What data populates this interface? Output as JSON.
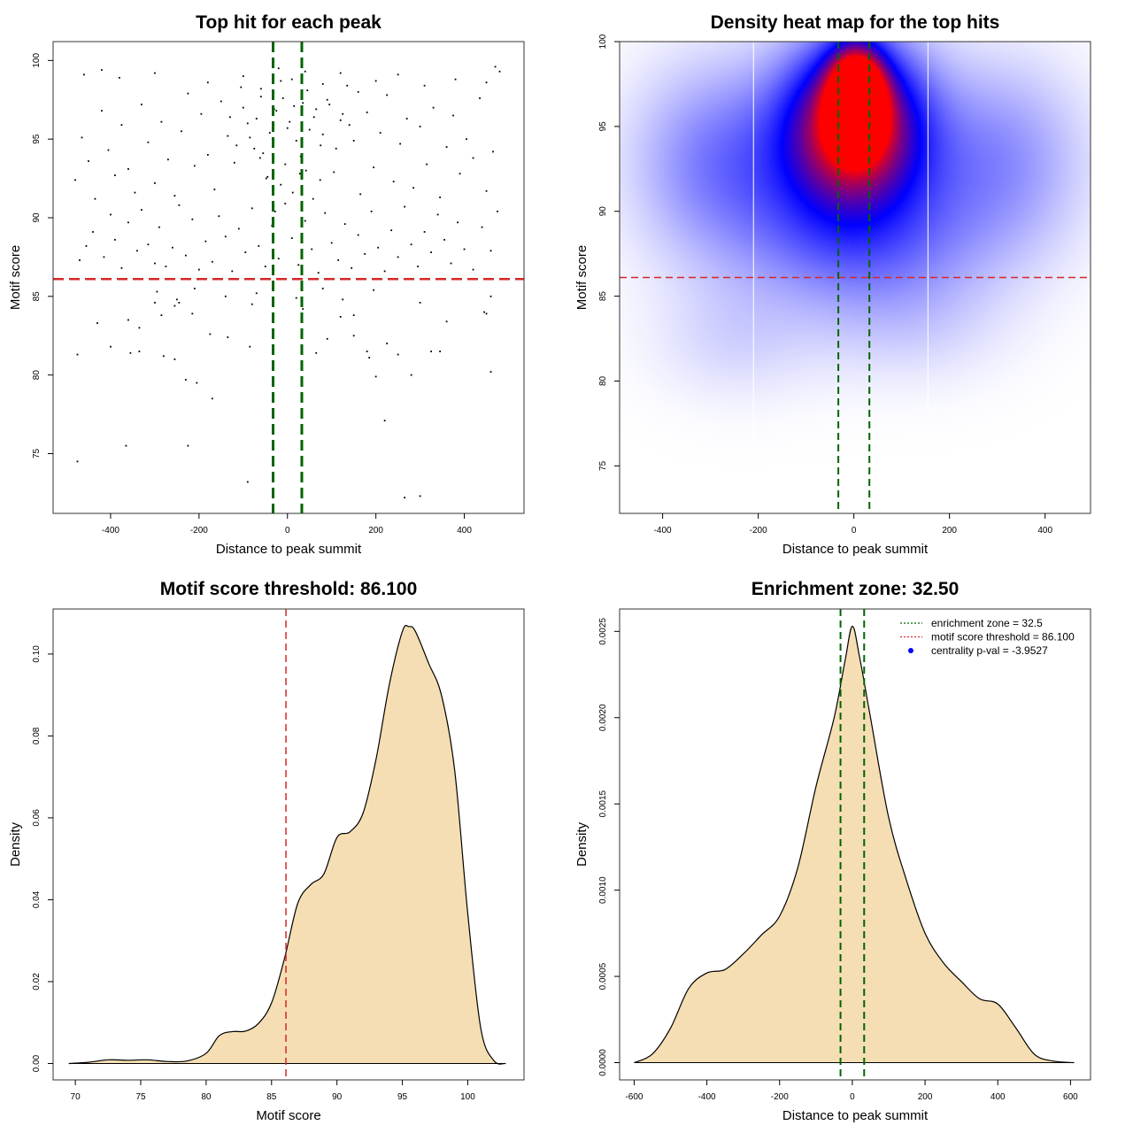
{
  "chart_data": [
    {
      "id": "scatter",
      "type": "scatter",
      "title": "Top hit for each peak",
      "xlabel": "Distance to peak summit",
      "ylabel": "Motif score",
      "xlim": [
        -530,
        535
      ],
      "ylim": [
        71.2,
        101.2
      ],
      "xticks": [
        -400,
        -200,
        0,
        200,
        400
      ],
      "yticks": [
        75,
        80,
        85,
        90,
        95,
        100
      ],
      "xtick_labels": [
        "-400",
        "-200",
        "0",
        "200",
        "400"
      ],
      "ytick_labels": [
        "75",
        "80",
        "85",
        "90",
        "95",
        "100"
      ],
      "hline": {
        "y": 86.1,
        "color": "#d62728"
      },
      "vlines": [
        {
          "x": -32.5,
          "color": "#006400"
        },
        {
          "x": 32.5,
          "color": "#006400"
        }
      ],
      "grid": false,
      "points": [
        [
          -475,
          74.5
        ],
        [
          -365,
          75.5
        ],
        [
          -225,
          75.5
        ],
        [
          -90,
          73.2
        ],
        [
          220,
          77.1
        ],
        [
          265,
          72.2
        ],
        [
          300,
          72.3
        ],
        [
          -170,
          78.5
        ],
        [
          -230,
          79.7
        ],
        [
          -205,
          79.5
        ],
        [
          200,
          79.9
        ],
        [
          280,
          80.0
        ],
        [
          460,
          80.2
        ],
        [
          -475,
          81.3
        ],
        [
          -400,
          81.8
        ],
        [
          -355,
          81.4
        ],
        [
          -335,
          81.5
        ],
        [
          -280,
          81.2
        ],
        [
          -255,
          81.0
        ],
        [
          -175,
          82.6
        ],
        [
          -135,
          82.4
        ],
        [
          -85,
          81.8
        ],
        [
          65,
          81.4
        ],
        [
          90,
          82.3
        ],
        [
          150,
          82.5
        ],
        [
          180,
          81.5
        ],
        [
          185,
          81.1
        ],
        [
          225,
          82.0
        ],
        [
          250,
          81.3
        ],
        [
          325,
          81.5
        ],
        [
          345,
          81.5
        ],
        [
          -430,
          83.3
        ],
        [
          -360,
          83.5
        ],
        [
          -335,
          83.0
        ],
        [
          -285,
          83.8
        ],
        [
          -255,
          84.4
        ],
        [
          -245,
          84.6
        ],
        [
          -215,
          83.9
        ],
        [
          -80,
          84.5
        ],
        [
          20,
          84.9
        ],
        [
          35,
          84.2
        ],
        [
          150,
          83.8
        ],
        [
          120,
          83.7
        ],
        [
          -300,
          84.6
        ],
        [
          -295,
          85.3
        ],
        [
          -250,
          84.8
        ],
        [
          -210,
          85.5
        ],
        [
          -140,
          85.0
        ],
        [
          -70,
          85.2
        ],
        [
          80,
          85.5
        ],
        [
          125,
          84.8
        ],
        [
          195,
          85.4
        ],
        [
          300,
          84.6
        ],
        [
          360,
          83.4
        ],
        [
          445,
          84.0
        ],
        [
          450,
          83.9
        ],
        [
          460,
          85.0
        ],
        [
          -470,
          87.3
        ],
        [
          -455,
          88.2
        ],
        [
          -440,
          89.1
        ],
        [
          -415,
          87.5
        ],
        [
          -400,
          90.2
        ],
        [
          -390,
          88.6
        ],
        [
          -375,
          86.8
        ],
        [
          -360,
          89.7
        ],
        [
          -340,
          87.9
        ],
        [
          -330,
          90.5
        ],
        [
          -315,
          88.3
        ],
        [
          -300,
          87.1
        ],
        [
          -290,
          89.4
        ],
        [
          -275,
          86.9
        ],
        [
          -260,
          88.1
        ],
        [
          -245,
          90.8
        ],
        [
          -230,
          87.6
        ],
        [
          -215,
          89.9
        ],
        [
          -200,
          86.7
        ],
        [
          -185,
          88.5
        ],
        [
          -170,
          87.2
        ],
        [
          -155,
          90.1
        ],
        [
          -140,
          88.8
        ],
        [
          -125,
          86.6
        ],
        [
          -110,
          89.3
        ],
        [
          -95,
          87.8
        ],
        [
          -80,
          90.6
        ],
        [
          -65,
          88.2
        ],
        [
          -50,
          86.9
        ],
        [
          -35,
          89.5
        ],
        [
          -20,
          87.4
        ],
        [
          -5,
          90.9
        ],
        [
          10,
          88.7
        ],
        [
          25,
          87.0
        ],
        [
          40,
          89.8
        ],
        [
          55,
          88.0
        ],
        [
          70,
          86.5
        ],
        [
          85,
          90.3
        ],
        [
          100,
          88.4
        ],
        [
          115,
          87.3
        ],
        [
          130,
          89.6
        ],
        [
          145,
          86.8
        ],
        [
          160,
          88.9
        ],
        [
          175,
          87.7
        ],
        [
          190,
          90.4
        ],
        [
          205,
          88.1
        ],
        [
          220,
          86.6
        ],
        [
          235,
          89.2
        ],
        [
          250,
          87.5
        ],
        [
          265,
          90.7
        ],
        [
          280,
          88.3
        ],
        [
          295,
          86.9
        ],
        [
          310,
          89.1
        ],
        [
          325,
          87.8
        ],
        [
          340,
          90.2
        ],
        [
          355,
          88.6
        ],
        [
          370,
          87.1
        ],
        [
          385,
          89.7
        ],
        [
          400,
          88.0
        ],
        [
          420,
          86.7
        ],
        [
          440,
          89.4
        ],
        [
          460,
          87.9
        ],
        [
          475,
          90.4
        ],
        [
          -480,
          92.4
        ],
        [
          -465,
          95.1
        ],
        [
          -450,
          93.6
        ],
        [
          -435,
          91.2
        ],
        [
          -420,
          96.8
        ],
        [
          -405,
          94.3
        ],
        [
          -390,
          92.7
        ],
        [
          -375,
          95.9
        ],
        [
          -360,
          93.1
        ],
        [
          -345,
          91.6
        ],
        [
          -330,
          97.2
        ],
        [
          -315,
          94.8
        ],
        [
          -300,
          92.2
        ],
        [
          -285,
          96.1
        ],
        [
          -270,
          93.7
        ],
        [
          -255,
          91.4
        ],
        [
          -240,
          95.5
        ],
        [
          -225,
          97.9
        ],
        [
          -210,
          93.3
        ],
        [
          -195,
          96.6
        ],
        [
          -180,
          94.0
        ],
        [
          -165,
          91.8
        ],
        [
          -150,
          97.4
        ],
        [
          -135,
          95.2
        ],
        [
          -120,
          93.5
        ],
        [
          -105,
          98.3
        ],
        [
          -90,
          96.0
        ],
        [
          -75,
          94.4
        ],
        [
          -60,
          97.7
        ],
        [
          -45,
          92.6
        ],
        [
          -30,
          96.9
        ],
        [
          -15,
          98.7
        ],
        [
          0,
          95.7
        ],
        [
          15,
          97.1
        ],
        [
          30,
          93.9
        ],
        [
          45,
          98.1
        ],
        [
          60,
          96.4
        ],
        [
          75,
          94.6
        ],
        [
          90,
          97.5
        ],
        [
          105,
          92.9
        ],
        [
          120,
          96.2
        ],
        [
          135,
          98.4
        ],
        [
          150,
          94.9
        ],
        [
          165,
          91.5
        ],
        [
          180,
          96.7
        ],
        [
          195,
          93.2
        ],
        [
          210,
          95.4
        ],
        [
          225,
          97.8
        ],
        [
          240,
          92.3
        ],
        [
          255,
          94.7
        ],
        [
          270,
          96.3
        ],
        [
          285,
          91.9
        ],
        [
          300,
          95.8
        ],
        [
          315,
          93.4
        ],
        [
          330,
          97.0
        ],
        [
          345,
          91.3
        ],
        [
          360,
          94.5
        ],
        [
          375,
          96.5
        ],
        [
          390,
          92.8
        ],
        [
          405,
          95.0
        ],
        [
          420,
          93.8
        ],
        [
          435,
          97.6
        ],
        [
          450,
          91.7
        ],
        [
          465,
          94.2
        ],
        [
          480,
          99.3
        ],
        [
          -460,
          99.1
        ],
        [
          -420,
          99.4
        ],
        [
          -380,
          98.9
        ],
        [
          -300,
          99.2
        ],
        [
          -180,
          98.6
        ],
        [
          -100,
          99.0
        ],
        [
          -60,
          98.2
        ],
        [
          -20,
          99.5
        ],
        [
          10,
          98.8
        ],
        [
          40,
          99.3
        ],
        [
          80,
          98.5
        ],
        [
          120,
          99.2
        ],
        [
          160,
          98.0
        ],
        [
          200,
          98.7
        ],
        [
          250,
          99.1
        ],
        [
          310,
          98.4
        ],
        [
          380,
          98.8
        ],
        [
          450,
          98.6
        ],
        [
          470,
          99.6
        ],
        [
          -40,
          95.4
        ],
        [
          -25,
          96.8
        ],
        [
          -10,
          97.6
        ],
        [
          5,
          96.1
        ],
        [
          20,
          94.9
        ],
        [
          35,
          97.3
        ],
        [
          50,
          95.6
        ],
        [
          65,
          96.9
        ],
        [
          -55,
          94.1
        ],
        [
          -70,
          96.3
        ],
        [
          -85,
          95.1
        ],
        [
          -100,
          97.0
        ],
        [
          -115,
          94.6
        ],
        [
          -130,
          96.4
        ],
        [
          80,
          95.3
        ],
        [
          95,
          97.2
        ],
        [
          110,
          94.4
        ],
        [
          125,
          96.6
        ],
        [
          140,
          95.9
        ],
        [
          -5,
          93.4
        ],
        [
          -15,
          92.1
        ],
        [
          12,
          91.6
        ],
        [
          28,
          92.8
        ],
        [
          -28,
          90.4
        ],
        [
          42,
          93.0
        ],
        [
          -48,
          92.5
        ],
        [
          58,
          91.2
        ],
        [
          -62,
          93.8
        ],
        [
          74,
          92.4
        ]
      ]
    },
    {
      "id": "heatmap",
      "type": "heatmap",
      "title": "Density heat map for the top hits",
      "xlabel": "Distance to peak summit",
      "ylabel": "Motif score",
      "xlim": [
        -490,
        495
      ],
      "ylim": [
        72.2,
        100.0
      ],
      "xticks": [
        -400,
        -200,
        0,
        200,
        400
      ],
      "yticks": [
        75,
        80,
        85,
        90,
        95,
        100
      ],
      "xtick_labels": [
        "-400",
        "-200",
        "0",
        "200",
        "400"
      ],
      "ytick_labels": [
        "75",
        "80",
        "85",
        "90",
        "95",
        "100"
      ],
      "hline": {
        "y": 86.1,
        "color": "#d62728"
      },
      "vlines": [
        {
          "x": -32.5,
          "color": "#006400"
        },
        {
          "x": 32.5,
          "color": "#006400"
        }
      ],
      "white_lines_x": [
        -210,
        155
      ],
      "colors": [
        "#ffffff",
        "#0000ff",
        "#ff0000"
      ],
      "blobs": [
        {
          "x": 5,
          "y": 96.8,
          "sx": 38,
          "sy": 1.9,
          "w": 1.0
        },
        {
          "x": 0,
          "y": 95.5,
          "sx": 95,
          "sy": 3.2,
          "w": 0.8
        },
        {
          "x": -10,
          "y": 92.0,
          "sx": 170,
          "sy": 4.5,
          "w": 0.38
        },
        {
          "x": -300,
          "y": 93.0,
          "sx": 120,
          "sy": 4.0,
          "w": 0.22
        },
        {
          "x": 320,
          "y": 93.0,
          "sx": 120,
          "sy": 4.0,
          "w": 0.2
        },
        {
          "x": -250,
          "y": 82.5,
          "sx": 120,
          "sy": 2.5,
          "w": 0.08
        },
        {
          "x": 120,
          "y": 83.5,
          "sx": 140,
          "sy": 2.5,
          "w": 0.08
        },
        {
          "x": 30,
          "y": 88.0,
          "sx": 180,
          "sy": 2.5,
          "w": 0.12
        }
      ]
    },
    {
      "id": "score-density",
      "type": "area",
      "title": "Motif score threshold: 86.100",
      "xlabel": "Motif score",
      "ylabel": "Density",
      "xlim": [
        68.3,
        104.3
      ],
      "ylim": [
        -0.004,
        0.111
      ],
      "xticks": [
        70,
        75,
        80,
        85,
        90,
        95,
        100
      ],
      "yticks": [
        0.0,
        0.02,
        0.04,
        0.06,
        0.08,
        0.1
      ],
      "xtick_labels": [
        "70",
        "75",
        "80",
        "85",
        "90",
        "95",
        "100"
      ],
      "ytick_labels": [
        "0.00",
        "0.02",
        "0.04",
        "0.06",
        "0.08",
        "0.10"
      ],
      "vline": {
        "x": 86.1,
        "color": "#d62728"
      },
      "fill": "#f5deb3",
      "x": [
        69.5,
        71,
        72.5,
        74,
        75.5,
        77,
        78.5,
        80,
        81,
        82,
        83,
        84,
        85,
        86,
        87,
        88,
        89,
        90,
        91,
        92,
        93,
        94,
        95,
        95.5,
        96,
        97,
        98,
        99,
        100,
        101,
        102,
        102.9
      ],
      "y": [
        0.0,
        0.0003,
        0.0009,
        0.0008,
        0.0009,
        0.0005,
        0.0006,
        0.0025,
        0.0068,
        0.0078,
        0.0079,
        0.0098,
        0.0148,
        0.0258,
        0.0391,
        0.0437,
        0.0463,
        0.0552,
        0.0566,
        0.0612,
        0.0745,
        0.0925,
        0.1055,
        0.1067,
        0.1055,
        0.0978,
        0.0898,
        0.0716,
        0.0366,
        0.0085,
        0.0007,
        0.0
      ]
    },
    {
      "id": "distance-density",
      "type": "area",
      "title": "Enrichment zone: 32.50",
      "xlabel": "Distance to peak summit",
      "ylabel": "Density",
      "xlim": [
        -640,
        655
      ],
      "ylim": [
        -0.0001,
        0.00263
      ],
      "xticks": [
        -600,
        -400,
        -200,
        0,
        200,
        400,
        600
      ],
      "yticks": [
        0.0,
        0.0005,
        0.001,
        0.0015,
        0.002,
        0.0025
      ],
      "xtick_labels": [
        "-600",
        "-400",
        "-200",
        "0",
        "200",
        "400",
        "600"
      ],
      "ytick_labels": [
        "0.0000",
        "0.0005",
        "0.0010",
        "0.0015",
        "0.0020",
        "0.0025"
      ],
      "vlines": [
        {
          "x": -32.5,
          "color": "#006400"
        },
        {
          "x": 32.5,
          "color": "#006400"
        }
      ],
      "fill": "#f5deb3",
      "x": [
        -600,
        -550,
        -500,
        -450,
        -400,
        -350,
        -300,
        -250,
        -200,
        -150,
        -100,
        -50,
        -20,
        0,
        20,
        50,
        100,
        150,
        200,
        250,
        300,
        350,
        400,
        450,
        500,
        550,
        610
      ],
      "y": [
        0.0,
        5e-05,
        0.0002,
        0.00043,
        0.00052,
        0.00054,
        0.00063,
        0.00074,
        0.00085,
        0.00113,
        0.0016,
        0.002,
        0.00233,
        0.00253,
        0.00235,
        0.002,
        0.00142,
        0.00105,
        0.00075,
        0.00058,
        0.00047,
        0.00037,
        0.00034,
        0.0002,
        5e-05,
        1e-05,
        0.0
      ],
      "legend": {
        "placement": "top-right",
        "entries": [
          {
            "label": "enrichment zone = 32.5",
            "color": "#006400",
            "style": "dotted-line"
          },
          {
            "label": "motif score threshold = 86.100",
            "color": "#d62728",
            "style": "dotted-line"
          },
          {
            "label": "centrality p-val = -3.9527",
            "color": "#0000ff",
            "style": "point"
          }
        ]
      }
    }
  ]
}
